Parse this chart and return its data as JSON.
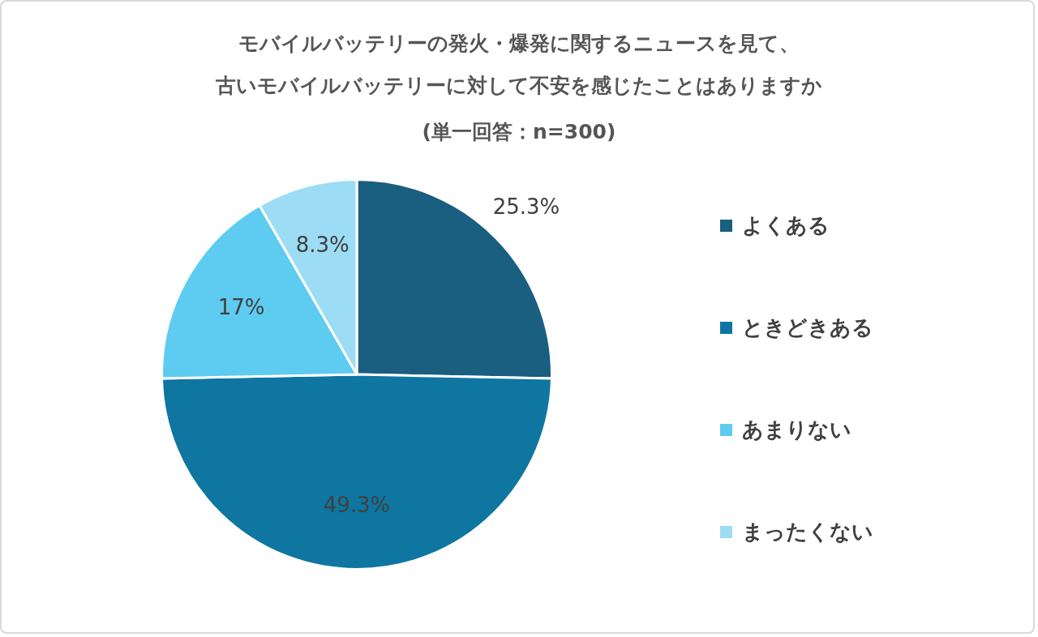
{
  "chart_data": {
    "type": "pie",
    "title": "モバイルバッテリーの発火・爆発に関するニュースを見て、古いモバイルバッテリーに対して不安を感じたことはありますか",
    "subtitle": "(単一回答：n=300)",
    "categories": [
      "よくある",
      "ときどきある",
      "あまりない",
      "まったくない"
    ],
    "values": [
      25.3,
      49.3,
      17,
      8.3
    ],
    "colors": [
      "#1a5e80",
      "#0e76a0",
      "#5ecbf0",
      "#9ddcf5"
    ],
    "value_labels": [
      "25.3%",
      "49.3%",
      "17%",
      "8.3%"
    ],
    "legend": "right"
  }
}
